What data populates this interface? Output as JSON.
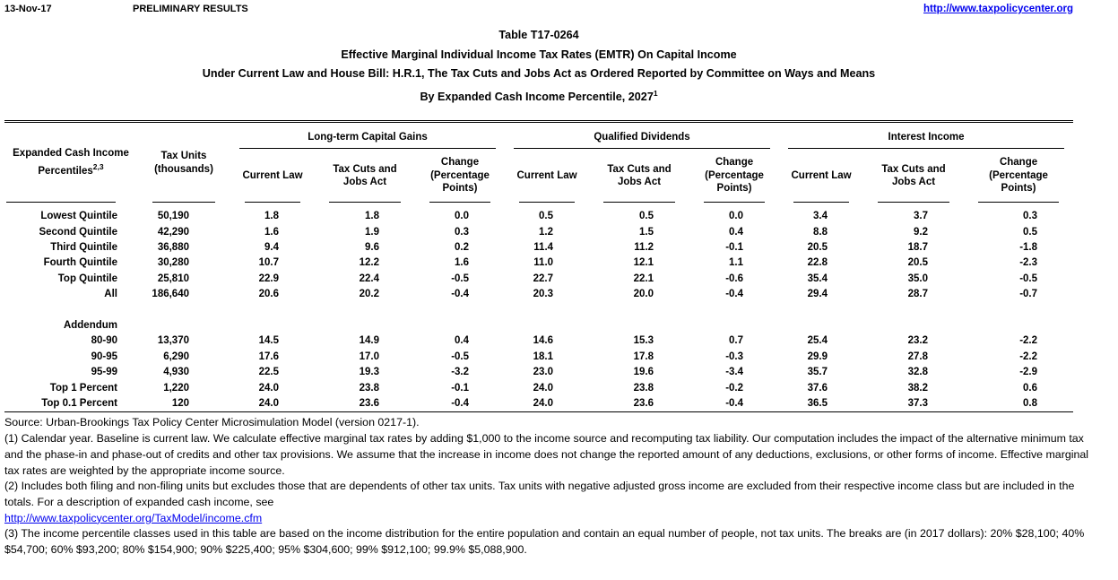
{
  "header": {
    "date": "13-Nov-17",
    "status": "PRELIMINARY RESULTS",
    "site_link": "http://www.taxpolicycenter.org"
  },
  "title": {
    "line1": "Table T17-0264",
    "line2": "Effective Marginal Individual Income Tax Rates (EMTR) On Capital Income",
    "line3": "Under Current Law and House Bill: H.R.1, The Tax Cuts and Jobs Act as Ordered Reported by Committee on Ways and Means",
    "line4": "By Expanded Cash Income Percentile, 2027",
    "line4_sup": "1"
  },
  "table": {
    "col1_header": {
      "line1": "Expanded Cash Income",
      "line2": "Percentiles",
      "sup": "2,3"
    },
    "col2_header": {
      "line1": "Tax Units",
      "line2": "(thousands)"
    },
    "groups": [
      "Long-term Capital Gains",
      "Qualified Dividends",
      "Interest Income"
    ],
    "sub_headers": [
      "Current Law",
      "Tax Cuts and Jobs Act",
      "Change (Percentage Points)"
    ],
    "rows": [
      {
        "label": "Lowest Quintile",
        "tax_units": "50,190",
        "values": [
          "1.8",
          "1.8",
          "0.0",
          "0.5",
          "0.5",
          "0.0",
          "3.4",
          "3.7",
          "0.3"
        ]
      },
      {
        "label": "Second Quintile",
        "tax_units": "42,290",
        "values": [
          "1.6",
          "1.9",
          "0.3",
          "1.2",
          "1.5",
          "0.4",
          "8.8",
          "9.2",
          "0.5"
        ]
      },
      {
        "label": "Third Quintile",
        "tax_units": "36,880",
        "values": [
          "9.4",
          "9.6",
          "0.2",
          "11.4",
          "11.2",
          "-0.1",
          "20.5",
          "18.7",
          "-1.8"
        ]
      },
      {
        "label": "Fourth Quintile",
        "tax_units": "30,280",
        "values": [
          "10.7",
          "12.2",
          "1.6",
          "11.0",
          "12.1",
          "1.1",
          "22.8",
          "20.5",
          "-2.3"
        ]
      },
      {
        "label": "Top Quintile",
        "tax_units": "25,810",
        "values": [
          "22.9",
          "22.4",
          "-0.5",
          "22.7",
          "22.1",
          "-0.6",
          "35.4",
          "35.0",
          "-0.5"
        ]
      },
      {
        "label": "All",
        "tax_units": "186,640",
        "values": [
          "20.6",
          "20.2",
          "-0.4",
          "20.3",
          "20.0",
          "-0.4",
          "29.4",
          "28.7",
          "-0.7"
        ]
      },
      {
        "label": "",
        "tax_units": "",
        "values": [
          "",
          "",
          "",
          "",
          "",
          "",
          "",
          "",
          ""
        ]
      },
      {
        "label": "Addendum",
        "tax_units": "",
        "values": [
          "",
          "",
          "",
          "",
          "",
          "",
          "",
          "",
          ""
        ]
      },
      {
        "label": "80-90",
        "tax_units": "13,370",
        "values": [
          "14.5",
          "14.9",
          "0.4",
          "14.6",
          "15.3",
          "0.7",
          "25.4",
          "23.2",
          "-2.2"
        ]
      },
      {
        "label": "90-95",
        "tax_units": "6,290",
        "values": [
          "17.6",
          "17.0",
          "-0.5",
          "18.1",
          "17.8",
          "-0.3",
          "29.9",
          "27.8",
          "-2.2"
        ]
      },
      {
        "label": "95-99",
        "tax_units": "4,930",
        "values": [
          "22.5",
          "19.3",
          "-3.2",
          "23.0",
          "19.6",
          "-3.4",
          "35.7",
          "32.8",
          "-2.9"
        ]
      },
      {
        "label": "Top 1 Percent",
        "tax_units": "1,220",
        "values": [
          "24.0",
          "23.8",
          "-0.1",
          "24.0",
          "23.8",
          "-0.2",
          "37.6",
          "38.2",
          "0.6"
        ]
      },
      {
        "label": "Top 0.1 Percent",
        "tax_units": "120",
        "values": [
          "24.0",
          "23.6",
          "-0.4",
          "24.0",
          "23.6",
          "-0.4",
          "36.5",
          "37.3",
          "0.8"
        ]
      }
    ]
  },
  "footnotes": {
    "source": "Source: Urban-Brookings Tax Policy Center Microsimulation Model (version 0217-1).",
    "note1": "(1) Calendar year. Baseline is current law. We calculate effective marginal tax rates by adding $1,000 to the income source and recomputing tax liability. Our computation includes the impact of the alternative minimum tax and the phase-in and phase-out of credits and other tax provisions. We assume that the increase in income does not change the reported amount of any deductions, exclusions, or other forms of income. Effective marginal tax rates are weighted by the appropriate income source.",
    "note2": "(2) Includes both filing and non-filing units but excludes those that are dependents of other tax units. Tax units with negative adjusted gross income are excluded from their respective income class but are included in the totals. For a description of expanded cash income, see",
    "note2_link": "http://www.taxpolicycenter.org/TaxModel/income.cfm",
    "note3": "(3) The income percentile classes used in this table are based on the income distribution for the entire population and contain an equal number of people, not tax units. The breaks are (in 2017 dollars): 20% $28,100; 40% $54,700; 60% $93,200; 80% $154,900; 90% $225,400; 95% $304,600; 99% $912,100; 99.9% $5,088,900."
  },
  "colors": {
    "link_blue": "#0000EE",
    "text": "#000000"
  }
}
